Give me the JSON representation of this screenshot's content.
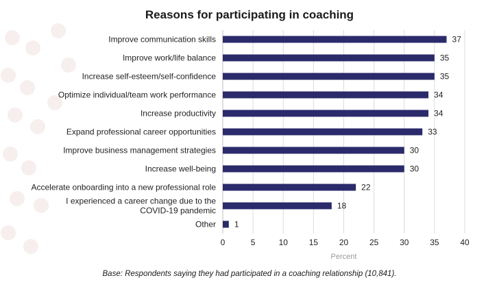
{
  "chart_data": {
    "type": "bar",
    "orientation": "horizontal",
    "title": "Reasons for participating in coaching",
    "xlabel": "Percent",
    "ylabel": "",
    "xlim": [
      0,
      40
    ],
    "xticks": [
      0,
      5,
      10,
      15,
      20,
      25,
      30,
      35,
      40
    ],
    "grid": true,
    "bar_color": "#2b2a6b",
    "categories": [
      [
        "Improve communication skills"
      ],
      [
        "Improve work/life balance"
      ],
      [
        "Increase self-esteem/self-confidence"
      ],
      [
        "Optimize individual/team work performance"
      ],
      [
        "Increase productivity"
      ],
      [
        "Expand professional career opportunities"
      ],
      [
        "Improve business management strategies"
      ],
      [
        "Increase well-being"
      ],
      [
        "Accelerate onboarding into a new professional role"
      ],
      [
        "I experienced a career change due to the",
        "COVID-19 pandemic"
      ],
      [
        "Other"
      ]
    ],
    "values": [
      37,
      35,
      35,
      34,
      34,
      33,
      30,
      30,
      22,
      18,
      1
    ]
  },
  "footnote": "Base: Respondents saying they had participated in a coaching relationship (10,841)."
}
